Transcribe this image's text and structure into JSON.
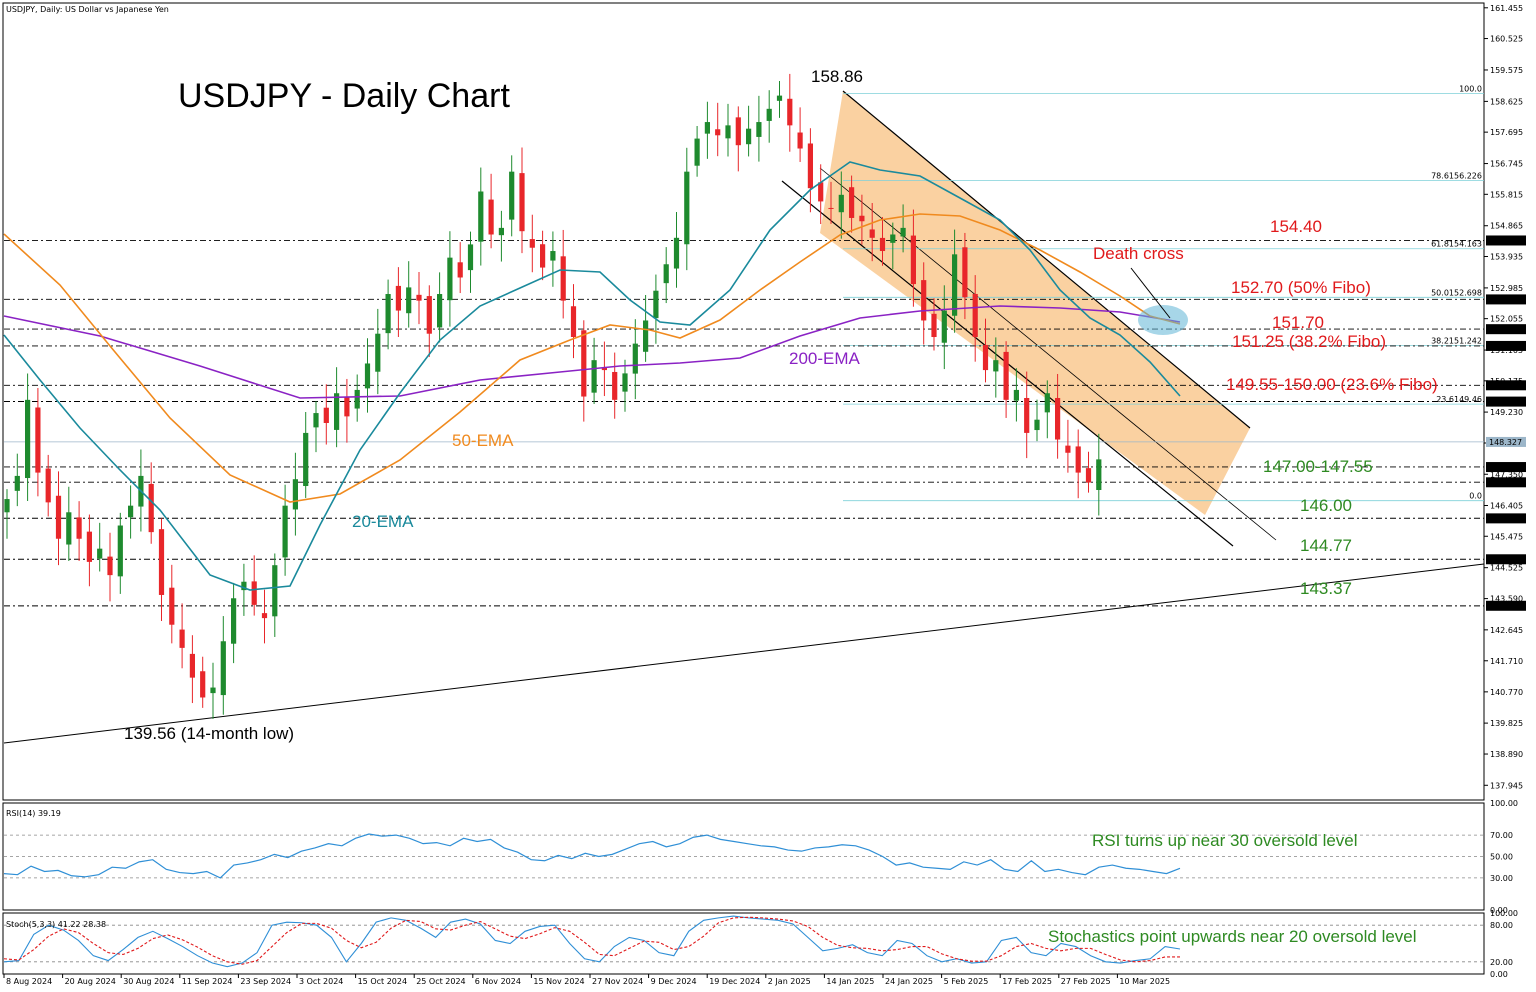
{
  "header": "USDJPY, Daily:  US Dollar vs Japanese Yen",
  "title": "USDJPY - Daily Chart",
  "colors": {
    "bull": "#1e8a2e",
    "bear": "#e8262a",
    "ema20": "#1a8a9c",
    "ema50": "#f08a1e",
    "ema200": "#8a22c4",
    "channel": "#f9c990",
    "red_text": "#e0191b",
    "green_text": "#2e8a22",
    "rsi": "#2f8fd6",
    "stoch_k": "#2f8fd6",
    "stoch_d": "#e0191b"
  },
  "chart_data": [
    {
      "type": "candlestick",
      "symbol": "USDJPY",
      "timeframe": "Daily",
      "ylim": [
        137.5,
        161.6
      ],
      "x_ticks": [
        "8 Aug 2024",
        "20 Aug 2024",
        "30 Aug 2024",
        "11 Sep 2024",
        "23 Sep 2024",
        "3 Oct 2024",
        "15 Oct 2024",
        "25 Oct 2024",
        "6 Nov 2024",
        "15 Nov 2024",
        "27 Nov 2024",
        "9 Dec 2024",
        "19 Dec 2024",
        "2 Jan 2025",
        "14 Jan 2025",
        "24 Jan 2025",
        "5 Feb 2025",
        "17 Feb 2025",
        "27 Feb 2025",
        "10 Mar 2025"
      ],
      "y_ticks": [
        "161.455",
        "160.525",
        "159.575",
        "158.625",
        "157.695",
        "156.745",
        "155.815",
        "154.865",
        "153.935",
        "152.985",
        "152.055",
        "151.105",
        "150.175",
        "149.230",
        "148.295",
        "147.350",
        "146.405",
        "145.475",
        "144.525",
        "143.590",
        "142.645",
        "141.710",
        "140.770",
        "139.825",
        "138.890",
        "137.945"
      ],
      "close_path": [
        146.6,
        147.3,
        149.6,
        147.4,
        146.5,
        145.4,
        146.2,
        145.4,
        144.7,
        145.1,
        144.3,
        145.8,
        146.4,
        147.3,
        145.6,
        143.7,
        142.8,
        142.1,
        141.2,
        140.6,
        140.9,
        142.3,
        143.6,
        144.1,
        143.4,
        143.0,
        144.6,
        146.4,
        147.2,
        148.6,
        149.2,
        148.9,
        149.8,
        149.1,
        149.9,
        150.7,
        151.6,
        152.8,
        152.3,
        153.0,
        152.6,
        151.6,
        152.8,
        153.9,
        153.3,
        154.3,
        155.9,
        154.6,
        154.8,
        156.5,
        154.7,
        154.2,
        153.6,
        154.1,
        152.6,
        151.5,
        149.7,
        150.8,
        150.5,
        149.6,
        150.4,
        151.3,
        152.0,
        152.9,
        153.7,
        154.5,
        156.5,
        157.5,
        158.0,
        157.6,
        157.9,
        157.3,
        157.8,
        158.0,
        158.4,
        158.8,
        157.9,
        157.2,
        156.0,
        155.6,
        155.4,
        155.8,
        155.1,
        155.0,
        154.5,
        154.1,
        154.6,
        154.8,
        153.1,
        152.0,
        151.5,
        152.3,
        154.0,
        152.7,
        151.5,
        150.5,
        150.8,
        149.6,
        149.9,
        148.6,
        149.0,
        149.8,
        148.4,
        148.0,
        147.4,
        147.1,
        147.8
      ],
      "series": [
        {
          "name": "200-EMA",
          "values_from": 152.05,
          "values_to": 151.7
        },
        {
          "name": "50-EMA",
          "values_from": 154.4,
          "values_to": 151.7
        },
        {
          "name": "20-EMA",
          "values_from": 151.4,
          "values_to": 149.6
        }
      ],
      "price_boxes": [
        "154.419",
        "152.637",
        "151.737",
        "151.230",
        "150.040",
        "149.547",
        "148.327",
        "147.568",
        "147.107",
        "146.016",
        "144.779",
        "143.373"
      ],
      "fibo_labels": [
        "100.0",
        "78.6156.226",
        "61.8154.163",
        "50.0152.698",
        "38.2151.242",
        "23.6149.46",
        "0.0"
      ],
      "levels": [
        {
          "value": 154.4,
          "label": "154.40",
          "color": "red"
        },
        {
          "value": 152.7,
          "label": "152.70 (50% Fibo)",
          "color": "red"
        },
        {
          "value": 151.7,
          "label": "151.70",
          "color": "red"
        },
        {
          "value": 151.25,
          "label": "151.25 (38.2% Fibo)",
          "color": "red"
        },
        {
          "value": 149.78,
          "label": "149.55-150.00 (23.6% Fibo)",
          "color": "red"
        },
        {
          "value": 147.3,
          "label": "147.00-147.55",
          "color": "green"
        },
        {
          "value": 146.0,
          "label": "146.00",
          "color": "green"
        },
        {
          "value": 144.77,
          "label": "144.77",
          "color": "green"
        },
        {
          "value": 143.37,
          "label": "143.37",
          "color": "green"
        }
      ],
      "annotations": [
        "158.86",
        "139.56 (14-month low)",
        "Death cross",
        "200-EMA",
        "50-EMA",
        "20-EMA"
      ]
    },
    {
      "type": "line",
      "title": "RSI(14) 39.19",
      "ylim": [
        0,
        100
      ],
      "y_ticks": [
        "100.00",
        "70.00",
        "50.00",
        "30.00",
        "0.00"
      ],
      "note": "RSI turns up near 30 oversold level",
      "series": [
        {
          "name": "RSI(14)",
          "values": [
            34,
            33,
            41,
            36,
            37,
            32,
            31,
            33,
            40,
            39,
            45,
            47,
            38,
            35,
            34,
            36,
            30,
            42,
            44,
            47,
            52,
            49,
            55,
            58,
            62,
            60,
            67,
            71,
            69,
            70,
            67,
            62,
            63,
            60,
            67,
            64,
            66,
            58,
            54,
            47,
            46,
            51,
            48,
            53,
            50,
            52,
            57,
            62,
            64,
            59,
            62,
            68,
            70,
            66,
            64,
            62,
            60,
            59,
            56,
            55,
            58,
            59,
            61,
            60,
            56,
            50,
            42,
            44,
            40,
            39,
            38,
            45,
            42,
            47,
            38,
            36,
            46,
            36,
            38,
            35,
            33,
            40,
            42,
            39,
            38,
            36,
            34,
            39
          ]
        }
      ]
    },
    {
      "type": "line",
      "title": "Stoch(5,3,3) 41.22 28.38",
      "ylim": [
        0,
        100
      ],
      "y_ticks": [
        "100.00",
        "80.00",
        "20.00",
        "0.00"
      ],
      "note": "Stochastics point upwards near 20 oversold level",
      "series": [
        {
          "name": "%K",
          "values": [
            20,
            22,
            65,
            80,
            72,
            55,
            30,
            22,
            40,
            60,
            70,
            58,
            45,
            30,
            18,
            12,
            18,
            35,
            80,
            85,
            84,
            80,
            60,
            20,
            50,
            85,
            92,
            88,
            75,
            60,
            85,
            90,
            82,
            55,
            50,
            70,
            78,
            80,
            50,
            25,
            20,
            45,
            60,
            55,
            35,
            30,
            70,
            88,
            92,
            95,
            92,
            90,
            88,
            82,
            60,
            38,
            42,
            48,
            35,
            30,
            55,
            50,
            30,
            20,
            25,
            18,
            20,
            55,
            60,
            35,
            30,
            50,
            45,
            30,
            20,
            18,
            22,
            25,
            45,
            41
          ]
        },
        {
          "name": "%D",
          "values": [
            25,
            23,
            40,
            62,
            74,
            68,
            50,
            35,
            32,
            42,
            58,
            64,
            56,
            44,
            30,
            20,
            16,
            22,
            45,
            68,
            83,
            83,
            75,
            55,
            43,
            52,
            75,
            88,
            86,
            74,
            72,
            80,
            86,
            74,
            62,
            58,
            66,
            76,
            70,
            52,
            32,
            30,
            42,
            54,
            52,
            40,
            45,
            62,
            84,
            92,
            93,
            92,
            90,
            87,
            78,
            60,
            47,
            43,
            42,
            38,
            40,
            45,
            45,
            33,
            25,
            21,
            21,
            30,
            45,
            50,
            42,
            38,
            42,
            42,
            32,
            23,
            20,
            22,
            28,
            28
          ]
        }
      ]
    }
  ]
}
